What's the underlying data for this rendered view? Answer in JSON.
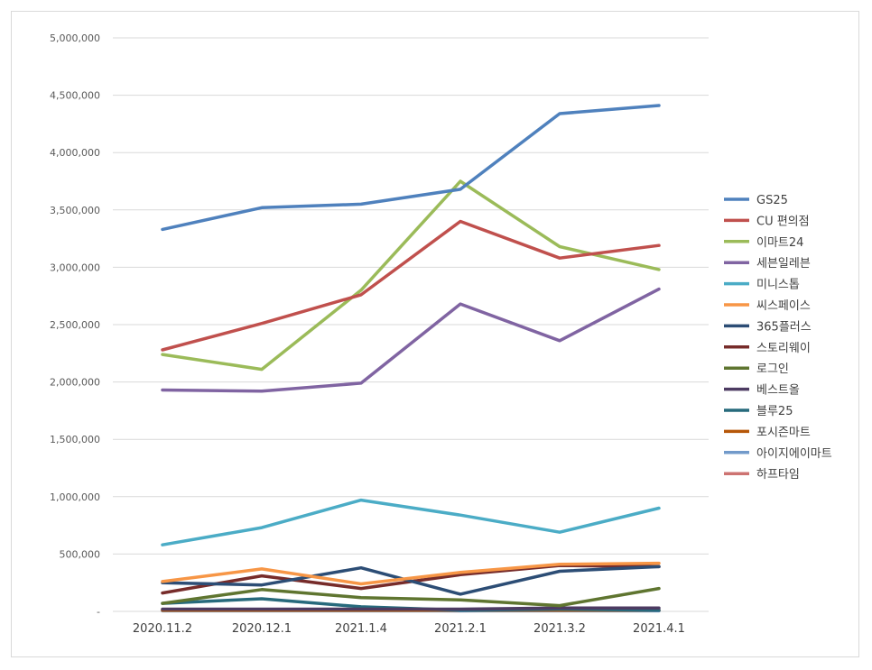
{
  "chart_data": {
    "type": "line",
    "title": "",
    "xlabel": "",
    "ylabel": "",
    "categories": [
      "2020.11.2",
      "2020.12.1",
      "2021.1.4",
      "2021.2.1",
      "2021.3.2",
      "2021.4.1"
    ],
    "ylim": [
      0,
      5000000
    ],
    "yticks": [
      0,
      500000,
      1000000,
      1500000,
      2000000,
      2500000,
      3000000,
      3500000,
      4000000,
      4500000,
      5000000
    ],
    "ytick_labels": [
      "-",
      "500,000",
      "1,000,000",
      "1,500,000",
      "2,000,000",
      "2,500,000",
      "3,000,000",
      "3,500,000",
      "4,000,000",
      "4,500,000",
      "5,000,000"
    ],
    "grid": "horizontal",
    "legend_position": "right",
    "series": [
      {
        "name": "GS25",
        "color": "#4F81BD",
        "values": [
          3330000,
          3520000,
          3550000,
          3680000,
          4340000,
          4410000
        ]
      },
      {
        "name": "CU 편의점",
        "color": "#C0504D",
        "values": [
          2280000,
          2510000,
          2760000,
          3400000,
          3080000,
          3190000
        ]
      },
      {
        "name": "이마트24",
        "color": "#9BBB59",
        "values": [
          2240000,
          2110000,
          2800000,
          3750000,
          3180000,
          2980000
        ]
      },
      {
        "name": "세븐일레븐",
        "color": "#8064A2",
        "values": [
          1930000,
          1920000,
          1990000,
          2680000,
          2360000,
          2810000
        ]
      },
      {
        "name": "미니스톱",
        "color": "#4BACC6",
        "values": [
          580000,
          730000,
          970000,
          840000,
          690000,
          900000
        ]
      },
      {
        "name": "씨스페이스",
        "color": "#F79646",
        "values": [
          260000,
          370000,
          240000,
          340000,
          410000,
          420000
        ]
      },
      {
        "name": "365플러스",
        "color": "#2C4D75",
        "values": [
          250000,
          230000,
          380000,
          150000,
          350000,
          390000
        ]
      },
      {
        "name": "스토리웨이",
        "color": "#772C2A",
        "values": [
          160000,
          310000,
          200000,
          320000,
          400000,
          390000
        ]
      },
      {
        "name": "로그인",
        "color": "#5F7530",
        "values": [
          70000,
          190000,
          120000,
          100000,
          50000,
          200000
        ]
      },
      {
        "name": "베스트올",
        "color": "#4D3B62",
        "values": [
          20000,
          20000,
          20000,
          20000,
          30000,
          30000
        ]
      },
      {
        "name": "블루25",
        "color": "#276A7C",
        "values": [
          70000,
          110000,
          40000,
          10000,
          20000,
          10000
        ]
      },
      {
        "name": "포시즌마트",
        "color": "#B65708",
        "values": [
          10000,
          10000,
          10000,
          10000,
          10000,
          10000
        ]
      },
      {
        "name": "아이지에이마트",
        "color": "#729ACA",
        "values": [
          5000,
          5000,
          5000,
          5000,
          5000,
          5000
        ]
      },
      {
        "name": "하프타임",
        "color": "#CD7371",
        "values": [
          15000,
          10000,
          10000,
          5000,
          10000,
          10000
        ]
      }
    ]
  }
}
